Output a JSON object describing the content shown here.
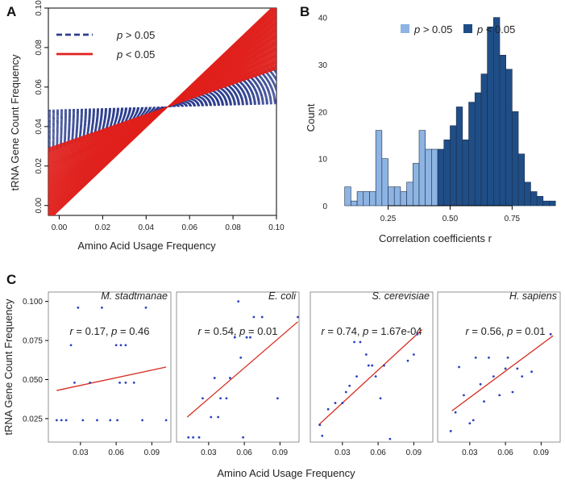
{
  "colors": {
    "line_ns": "#2e3f8f",
    "line_sig": "#e0211d",
    "hist_ns": "#8db4e2",
    "hist_sig": "#1f4e87",
    "dot": "#2b3fbf",
    "fit": "#d62a1e",
    "bar_edge": "#1c2d4a"
  },
  "chart_data": [
    {
      "id": "A",
      "type": "line",
      "panel_label": "A",
      "title": "",
      "xlabel": "Amino Acid Usage Frequency",
      "ylabel": "tRNA Gene Count Frequency",
      "xlim": [
        -0.005,
        0.1
      ],
      "ylim": [
        -0.005,
        0.1
      ],
      "x_ticks": [
        "0.00",
        "0.02",
        "0.04",
        "0.06",
        "0.08",
        "0.10"
      ],
      "y_ticks": [
        "0.00",
        "0.02",
        "0.04",
        "0.06",
        "0.08",
        "0.10"
      ],
      "pivot": [
        0.05,
        0.05
      ],
      "legend": [
        {
          "p": "p",
          "op": " > 0.05",
          "style": "dashed",
          "color_key": "line_ns"
        },
        {
          "p": "p",
          "op": " < 0.05",
          "style": "solid",
          "color_key": "line_sig"
        }
      ],
      "series": [
        {
          "name": "p > 0.05",
          "style": "dashed",
          "slope_range": [
            0.03,
            0.42
          ],
          "count": 45,
          "y_at_x0_range": [
            0.029,
            0.0485
          ]
        },
        {
          "name": "p < 0.05",
          "style": "solid",
          "slope_range": [
            0.38,
            1.05
          ],
          "count": 130,
          "y_at_x0_range": [
            -0.0025,
            0.031
          ]
        }
      ]
    },
    {
      "id": "B",
      "type": "bar",
      "panel_label": "B",
      "xlabel": "Correlation coefficients r",
      "ylabel": "Count",
      "xlim": [
        0.05,
        0.96
      ],
      "ylim": [
        0,
        42
      ],
      "x_ticks": [
        "0.25",
        "0.50",
        "0.75"
      ],
      "x_tick_values": [
        0.25,
        0.5,
        0.75
      ],
      "y_ticks": [
        "0",
        "10",
        "20",
        "30",
        "40"
      ],
      "y_tick_values": [
        0,
        10,
        20,
        30,
        40
      ],
      "bin_width": 0.025,
      "legend": [
        {
          "p": "p",
          "op": " > 0.05",
          "color_key": "hist_ns"
        },
        {
          "p": "p",
          "op": " < 0.05",
          "color_key": "hist_sig"
        }
      ],
      "bins": [
        {
          "start": 0.075,
          "count": 4,
          "sig": false
        },
        {
          "start": 0.1,
          "count": 1,
          "sig": false
        },
        {
          "start": 0.125,
          "count": 3,
          "sig": false
        },
        {
          "start": 0.15,
          "count": 3,
          "sig": false
        },
        {
          "start": 0.175,
          "count": 3,
          "sig": false
        },
        {
          "start": 0.2,
          "count": 16,
          "sig": false
        },
        {
          "start": 0.225,
          "count": 10,
          "sig": false
        },
        {
          "start": 0.25,
          "count": 4,
          "sig": false
        },
        {
          "start": 0.275,
          "count": 4,
          "sig": false
        },
        {
          "start": 0.3,
          "count": 3,
          "sig": false
        },
        {
          "start": 0.325,
          "count": 5,
          "sig": false
        },
        {
          "start": 0.35,
          "count": 9,
          "sig": false
        },
        {
          "start": 0.375,
          "count": 16,
          "sig": false
        },
        {
          "start": 0.4,
          "count": 12,
          "sig": false
        },
        {
          "start": 0.425,
          "count": 12,
          "sig": false
        },
        {
          "start": 0.45,
          "count": 12,
          "sig": true
        },
        {
          "start": 0.475,
          "count": 14,
          "sig": true
        },
        {
          "start": 0.5,
          "count": 17,
          "sig": true
        },
        {
          "start": 0.525,
          "count": 21,
          "sig": true
        },
        {
          "start": 0.55,
          "count": 14,
          "sig": true
        },
        {
          "start": 0.575,
          "count": 22,
          "sig": true
        },
        {
          "start": 0.6,
          "count": 24,
          "sig": true
        },
        {
          "start": 0.625,
          "count": 28,
          "sig": true
        },
        {
          "start": 0.65,
          "count": 38,
          "sig": true
        },
        {
          "start": 0.675,
          "count": 40,
          "sig": true
        },
        {
          "start": 0.7,
          "count": 32,
          "sig": true
        },
        {
          "start": 0.725,
          "count": 29,
          "sig": true
        },
        {
          "start": 0.75,
          "count": 20,
          "sig": true
        },
        {
          "start": 0.775,
          "count": 11,
          "sig": true
        },
        {
          "start": 0.8,
          "count": 5,
          "sig": true
        },
        {
          "start": 0.825,
          "count": 3,
          "sig": true
        },
        {
          "start": 0.85,
          "count": 2,
          "sig": true
        },
        {
          "start": 0.875,
          "count": 1,
          "sig": true
        },
        {
          "start": 0.9,
          "count": 1,
          "sig": true
        }
      ]
    },
    {
      "id": "C",
      "type": "scatter",
      "panel_label": "C",
      "xlabel": "Amino Acid Usage Frequency",
      "ylabel": "tRNA Gene Count Frequency",
      "xlim": [
        0.003,
        0.106
      ],
      "ylim": [
        0.01,
        0.106
      ],
      "x_ticks": [
        "0.03",
        "0.06",
        "0.09"
      ],
      "x_tick_values": [
        0.03,
        0.06,
        0.09
      ],
      "y_ticks": [
        "0.025",
        "0.050",
        "0.075",
        "0.100"
      ],
      "y_tick_values": [
        0.025,
        0.05,
        0.075,
        0.1
      ],
      "panels": [
        {
          "species": "M. stadtmanae",
          "r": "0.17",
          "p": "0.46",
          "fit": {
            "x": [
              0.01,
              0.102
            ],
            "y": [
              0.043,
              0.058
            ]
          },
          "points": [
            [
              0.01,
              0.024
            ],
            [
              0.014,
              0.024
            ],
            [
              0.018,
              0.024
            ],
            [
              0.022,
              0.072
            ],
            [
              0.025,
              0.048
            ],
            [
              0.028,
              0.096
            ],
            [
              0.032,
              0.024
            ],
            [
              0.038,
              0.048
            ],
            [
              0.044,
              0.024
            ],
            [
              0.048,
              0.096
            ],
            [
              0.055,
              0.024
            ],
            [
              0.06,
              0.072
            ],
            [
              0.064,
              0.072
            ],
            [
              0.061,
              0.024
            ],
            [
              0.063,
              0.048
            ],
            [
              0.068,
              0.048
            ],
            [
              0.068,
              0.072
            ],
            [
              0.075,
              0.048
            ],
            [
              0.082,
              0.024
            ],
            [
              0.085,
              0.096
            ],
            [
              0.102,
              0.024
            ]
          ]
        },
        {
          "species": "E. coli",
          "r": "0.54",
          "p": "0.01",
          "fit": {
            "x": [
              0.012,
              0.105
            ],
            "y": [
              0.026,
              0.087
            ]
          },
          "points": [
            [
              0.013,
              0.013
            ],
            [
              0.017,
              0.013
            ],
            [
              0.022,
              0.013
            ],
            [
              0.025,
              0.038
            ],
            [
              0.032,
              0.026
            ],
            [
              0.035,
              0.051
            ],
            [
              0.038,
              0.026
            ],
            [
              0.04,
              0.038
            ],
            [
              0.045,
              0.038
            ],
            [
              0.048,
              0.051
            ],
            [
              0.052,
              0.077
            ],
            [
              0.055,
              0.1
            ],
            [
              0.057,
              0.064
            ],
            [
              0.059,
              0.013
            ],
            [
              0.062,
              0.077
            ],
            [
              0.065,
              0.077
            ],
            [
              0.068,
              0.09
            ],
            [
              0.075,
              0.09
            ],
            [
              0.088,
              0.038
            ],
            [
              0.105,
              0.09
            ]
          ]
        },
        {
          "species": "S. cerevisiae",
          "r": "0.74",
          "p": "1.67e-04",
          "fit": {
            "x": [
              0.01,
              0.097
            ],
            "y": [
              0.021,
              0.082
            ]
          },
          "points": [
            [
              0.011,
              0.021
            ],
            [
              0.013,
              0.014
            ],
            [
              0.018,
              0.031
            ],
            [
              0.024,
              0.035
            ],
            [
              0.03,
              0.035
            ],
            [
              0.033,
              0.042
            ],
            [
              0.036,
              0.046
            ],
            [
              0.04,
              0.074
            ],
            [
              0.042,
              0.052
            ],
            [
              0.045,
              0.074
            ],
            [
              0.05,
              0.066
            ],
            [
              0.052,
              0.059
            ],
            [
              0.055,
              0.059
            ],
            [
              0.058,
              0.052
            ],
            [
              0.062,
              0.038
            ],
            [
              0.065,
              0.059
            ],
            [
              0.07,
              0.012
            ],
            [
              0.085,
              0.062
            ],
            [
              0.09,
              0.066
            ],
            [
              0.093,
              0.079
            ]
          ]
        },
        {
          "species": "H. sapiens",
          "r": "0.56",
          "p": "0.01",
          "fit": {
            "x": [
              0.015,
              0.1
            ],
            "y": [
              0.03,
              0.078
            ]
          },
          "points": [
            [
              0.014,
              0.017
            ],
            [
              0.018,
              0.029
            ],
            [
              0.021,
              0.058
            ],
            [
              0.025,
              0.04
            ],
            [
              0.03,
              0.022
            ],
            [
              0.033,
              0.024
            ],
            [
              0.035,
              0.064
            ],
            [
              0.039,
              0.047
            ],
            [
              0.042,
              0.036
            ],
            [
              0.046,
              0.064
            ],
            [
              0.05,
              0.052
            ],
            [
              0.055,
              0.04
            ],
            [
              0.06,
              0.057
            ],
            [
              0.062,
              0.064
            ],
            [
              0.066,
              0.042
            ],
            [
              0.07,
              0.057
            ],
            [
              0.074,
              0.052
            ],
            [
              0.082,
              0.055
            ],
            [
              0.098,
              0.079
            ]
          ]
        }
      ]
    }
  ]
}
